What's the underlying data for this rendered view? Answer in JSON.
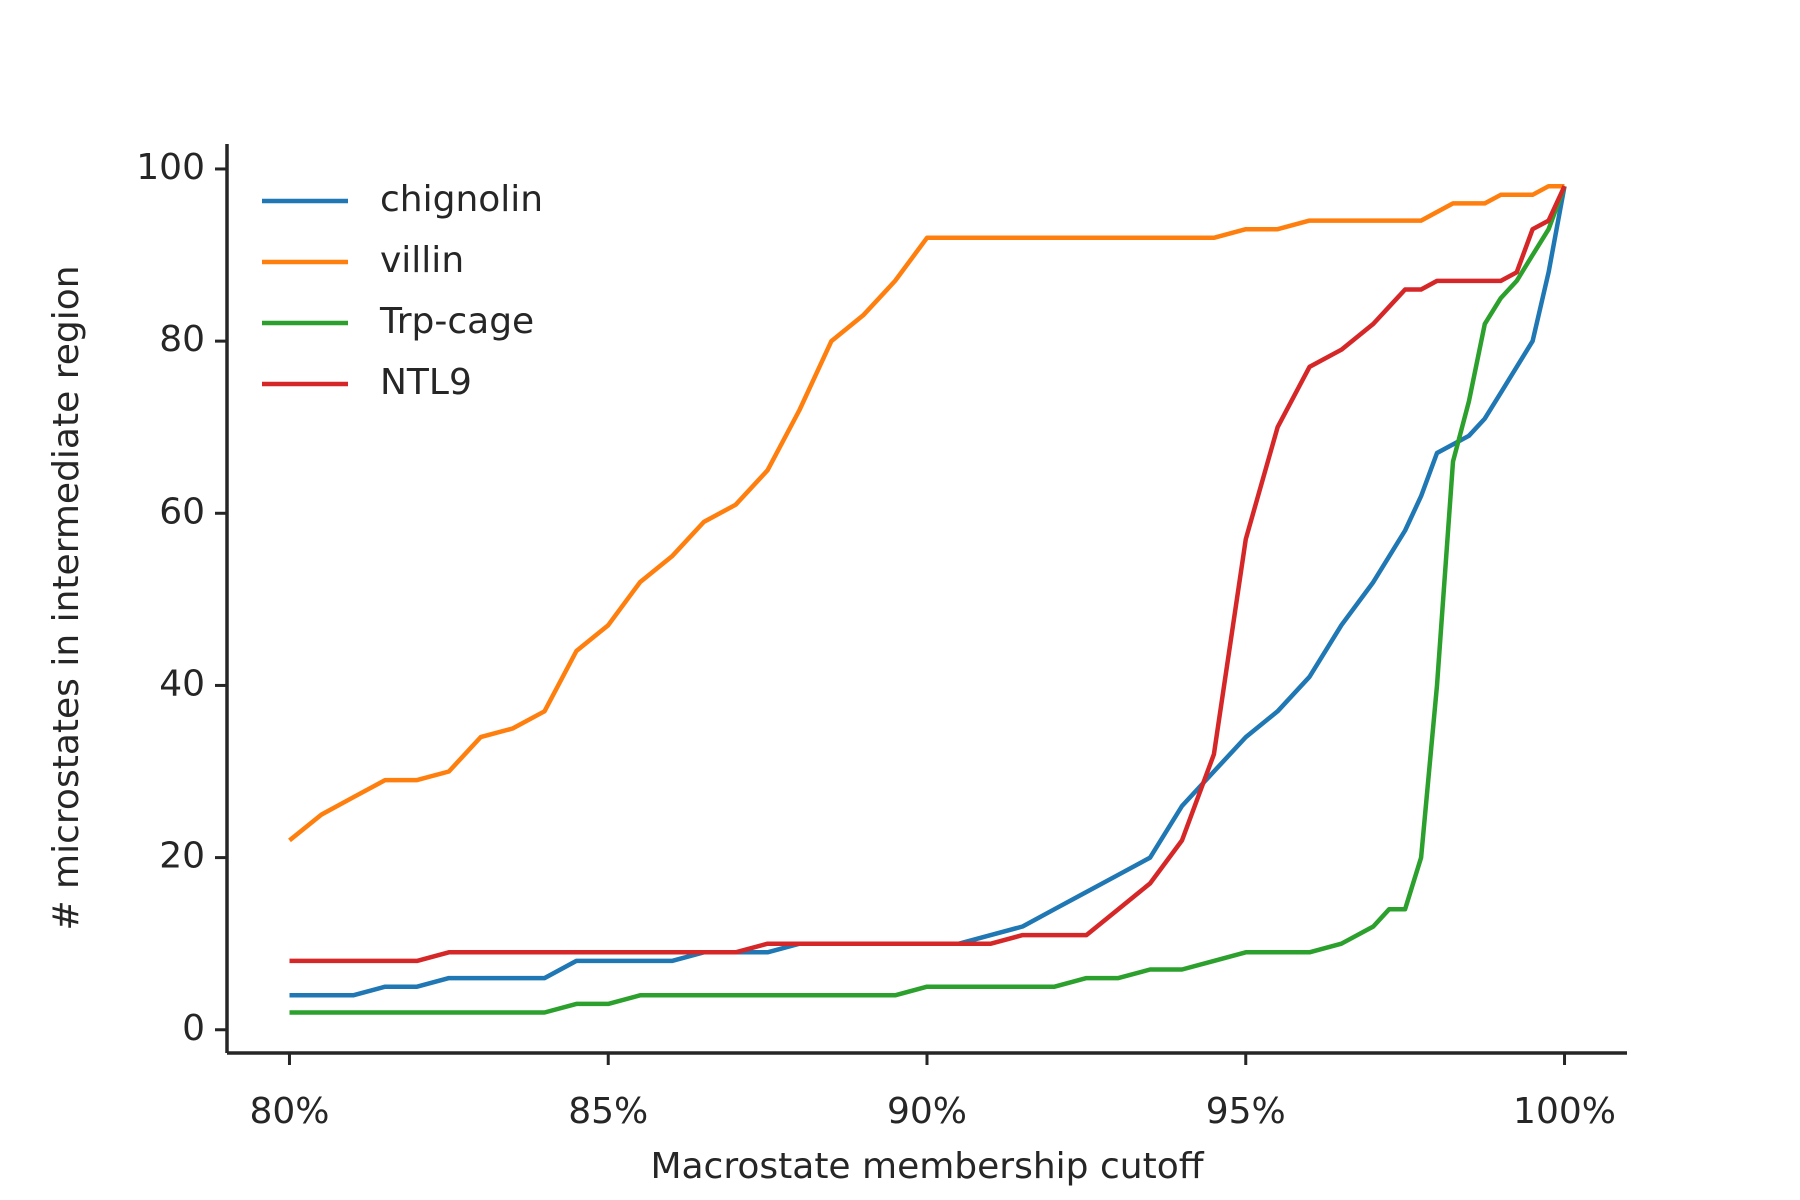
{
  "chart_data": {
    "type": "line",
    "xlabel": "Macrostate membership cutoff",
    "ylabel": "# microstates in intermediate region",
    "x": [
      80,
      80.5,
      81,
      81.5,
      82,
      82.5,
      83,
      83.5,
      84,
      84.5,
      85,
      85.5,
      86,
      86.5,
      87,
      87.5,
      88,
      88.5,
      89,
      89.5,
      90,
      90.5,
      91,
      91.5,
      92,
      92.5,
      93,
      93.5,
      94,
      94.5,
      95,
      95.5,
      96,
      96.5,
      97,
      97.25,
      97.5,
      97.75,
      98,
      98.25,
      98.5,
      98.75,
      99,
      99.25,
      99.5,
      99.75,
      100
    ],
    "series": [
      {
        "name": "chignolin",
        "color": "#1f77b4",
        "values": [
          4,
          4,
          4,
          5,
          5,
          6,
          6,
          6,
          6,
          8,
          8,
          8,
          8,
          9,
          9,
          9,
          10,
          10,
          10,
          10,
          10,
          10,
          11,
          12,
          14,
          16,
          18,
          20,
          26,
          30,
          34,
          37,
          41,
          47,
          52,
          55,
          58,
          62,
          67,
          68,
          69,
          71,
          74,
          77,
          80,
          88,
          98
        ]
      },
      {
        "name": "villin",
        "color": "#ff7f0e",
        "values": [
          22,
          25,
          27,
          29,
          29,
          30,
          34,
          35,
          37,
          44,
          47,
          52,
          55,
          59,
          61,
          65,
          72,
          80,
          83,
          87,
          92,
          92,
          92,
          92,
          92,
          92,
          92,
          92,
          92,
          92,
          93,
          93,
          94,
          94,
          94,
          94,
          94,
          94,
          95,
          96,
          96,
          96,
          97,
          97,
          97,
          98,
          98
        ]
      },
      {
        "name": "Trp-cage",
        "color": "#2ca02c",
        "values": [
          2,
          2,
          2,
          2,
          2,
          2,
          2,
          2,
          2,
          3,
          3,
          4,
          4,
          4,
          4,
          4,
          4,
          4,
          4,
          4,
          5,
          5,
          5,
          5,
          5,
          6,
          6,
          7,
          7,
          8,
          9,
          9,
          9,
          10,
          12,
          14,
          14,
          20,
          40,
          66,
          73,
          82,
          85,
          87,
          90,
          93,
          98
        ]
      },
      {
        "name": "NTL9",
        "color": "#d62728",
        "values": [
          8,
          8,
          8,
          8,
          8,
          9,
          9,
          9,
          9,
          9,
          9,
          9,
          9,
          9,
          9,
          10,
          10,
          10,
          10,
          10,
          10,
          10,
          10,
          11,
          11,
          11,
          14,
          17,
          22,
          32,
          57,
          70,
          77,
          79,
          82,
          84,
          86,
          86,
          87,
          87,
          87,
          87,
          87,
          88,
          93,
          94,
          98
        ]
      }
    ],
    "xlim": [
      79.02,
      100.98
    ],
    "ylim": [
      -2.7,
      102.9
    ],
    "xticks": [
      {
        "value": 80,
        "label": "80%"
      },
      {
        "value": 85,
        "label": "85%"
      },
      {
        "value": 90,
        "label": "90%"
      },
      {
        "value": 95,
        "label": "95%"
      },
      {
        "value": 100,
        "label": "100%"
      }
    ],
    "yticks": [
      0,
      20,
      40,
      60,
      80,
      100
    ],
    "legend": "upper left"
  }
}
